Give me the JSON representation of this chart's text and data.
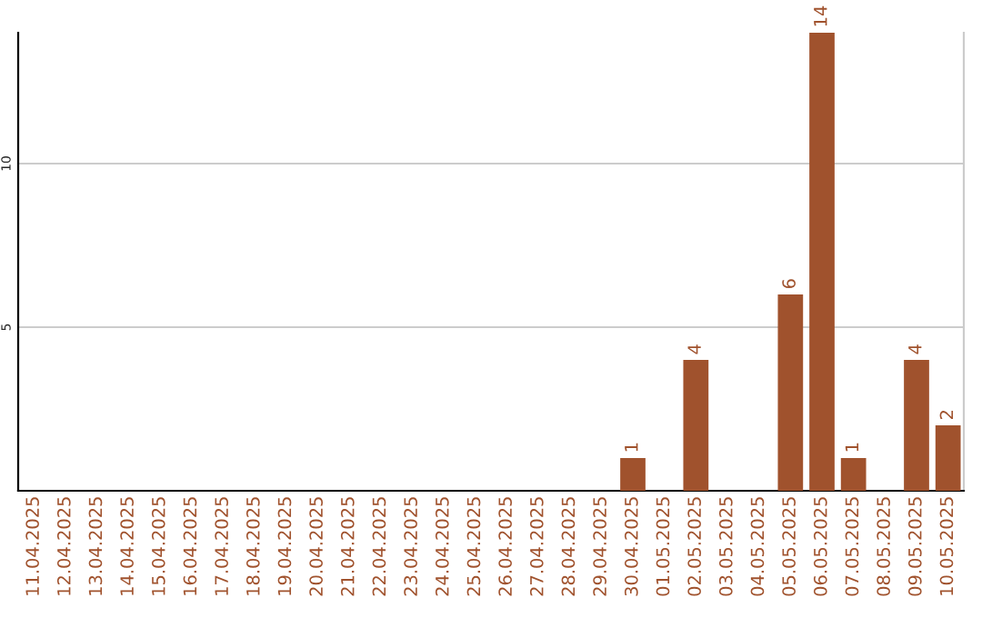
{
  "chart_data": {
    "type": "bar",
    "categories": [
      "11.04.2025",
      "12.04.2025",
      "13.04.2025",
      "14.04.2025",
      "15.04.2025",
      "16.04.2025",
      "17.04.2025",
      "18.04.2025",
      "19.04.2025",
      "20.04.2025",
      "21.04.2025",
      "22.04.2025",
      "23.04.2025",
      "24.04.2025",
      "25.04.2025",
      "26.04.2025",
      "27.04.2025",
      "28.04.2025",
      "29.04.2025",
      "30.04.2025",
      "01.05.2025",
      "02.05.2025",
      "03.05.2025",
      "04.05.2025",
      "05.05.2025",
      "06.05.2025",
      "07.05.2025",
      "08.05.2025",
      "09.05.2025",
      "10.05.2025"
    ],
    "values": [
      0,
      0,
      0,
      0,
      0,
      0,
      0,
      0,
      0,
      0,
      0,
      0,
      0,
      0,
      0,
      0,
      0,
      0,
      0,
      1,
      0,
      4,
      0,
      0,
      6,
      14,
      1,
      0,
      4,
      2
    ],
    "value_labels": [
      null,
      null,
      null,
      null,
      null,
      null,
      null,
      null,
      null,
      null,
      null,
      null,
      null,
      null,
      null,
      null,
      null,
      null,
      null,
      "1",
      null,
      "4",
      null,
      null,
      "6",
      "14",
      "1",
      null,
      "4",
      "2"
    ],
    "color": "#a0522d",
    "ylim": [
      0,
      14
    ],
    "yticks": [
      5,
      10
    ],
    "grid": "y"
  }
}
